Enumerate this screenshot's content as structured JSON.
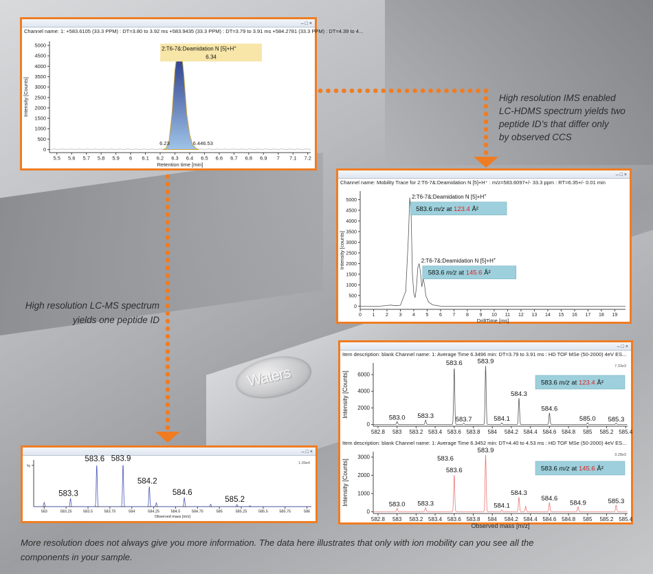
{
  "colors": {
    "accent": "#f07c22",
    "label_box": "#9dd0dc",
    "ccs_red": "#e0201e",
    "peak_fill": "#2a3f8f",
    "annot_bg": "#f7e6a8"
  },
  "background": {
    "logo_text": "Waters"
  },
  "captions": {
    "ims": [
      "High resolution IMS enabled",
      "LC-HDMS spectrum yields two",
      "peptide ID’s that differ only",
      "by observed CCS"
    ],
    "lcms": [
      "High resolution LC-MS spectrum",
      "yields one peptide ID"
    ],
    "footer": [
      "More resolution does not always give you more information. The data here illustrates that only with ion mobility can you see all the",
      "components in your sample."
    ]
  },
  "chart_data": [
    {
      "id": "chromatogram",
      "type": "line",
      "channel_text": "Channel name: 1: +583.6105 (33.3 PPM) : DT=3.80 to 3.92 ms +583.9435 (33.3 PPM) : DT=3.79 to 3.91 ms +584.2781 (33.3 PPM) : DT=4.39 to 4...",
      "xlabel": "Retention time [min]",
      "ylabel": "Intensity [Counts]",
      "xlim": [
        5.45,
        7.22
      ],
      "ylim": [
        -150,
        5200
      ],
      "xticks": [
        5.5,
        5.6,
        5.7,
        5.8,
        5.9,
        6,
        6.1,
        6.2,
        6.3,
        6.4,
        6.5,
        6.6,
        6.7,
        6.8,
        6.9,
        7,
        7.1,
        7.2
      ],
      "yticks": [
        0,
        500,
        1000,
        1500,
        2000,
        2500,
        3000,
        3500,
        4000,
        4500,
        5000
      ],
      "peak": {
        "x": [
          6.22,
          6.24,
          6.26,
          6.28,
          6.3,
          6.32,
          6.34,
          6.36,
          6.38,
          6.4,
          6.42,
          6.44,
          6.46
        ],
        "y": [
          0,
          60,
          400,
          1700,
          3800,
          4900,
          5020,
          3600,
          1700,
          700,
          230,
          70,
          0
        ]
      },
      "annotation": {
        "label": "2:T6-7&:Deamidation N [5]+H",
        "sup": "+",
        "value": "6.34"
      },
      "peak_labels": [
        {
          "x": 6.23,
          "y": 80,
          "text": "6.23"
        },
        {
          "x": 6.49,
          "y": 80,
          "text": "6.446.53"
        }
      ]
    },
    {
      "id": "mobility",
      "type": "line",
      "channel_text": "Channel name: Mobility Trace for 2:T6-7&:Deamidation N [5]+H⁺ : m/z=583.6097+/- 33.3 ppm : RT=6.35+/- 0.01 min",
      "xlabel": "DriftTime [ms]",
      "ylabel": "Intensity [counts]",
      "xlim": [
        0,
        19.8
      ],
      "ylim": [
        -150,
        5400
      ],
      "xticks": [
        0,
        1,
        2,
        3,
        4,
        5,
        6,
        7,
        8,
        9,
        10,
        11,
        12,
        13,
        14,
        15,
        16,
        17,
        18,
        19
      ],
      "yticks": [
        0,
        500,
        1000,
        1500,
        2000,
        2500,
        3000,
        3500,
        4000,
        4500,
        5000
      ],
      "trace": {
        "x": [
          0,
          1.5,
          2.0,
          2.3,
          2.6,
          3.0,
          3.4,
          3.6,
          3.7,
          3.8,
          3.9,
          4.0,
          4.1,
          4.2,
          4.3,
          4.4,
          4.5,
          4.6,
          4.7,
          4.8,
          4.9,
          5.1,
          5.4,
          6,
          8,
          12,
          19.8
        ],
        "y": [
          0,
          0,
          30,
          50,
          20,
          40,
          700,
          3300,
          5100,
          4300,
          1500,
          600,
          400,
          900,
          1800,
          2000,
          1600,
          900,
          1300,
          1000,
          500,
          200,
          60,
          0,
          0,
          0,
          0
        ]
      },
      "labels": [
        {
          "x": 3.75,
          "y": 5050,
          "text": "2:T6-7&:Deamidation N [5]+H",
          "sup": "+",
          "mz": "583.6",
          "unit": "m/z",
          "at": " at ",
          "ccs": "123.4",
          "ang": "Å²"
        },
        {
          "x": 4.45,
          "y": 2050,
          "text": "2:T6-7&:Deamidation N [5]+H",
          "sup": "+",
          "mz": "583.6",
          "unit": "m/z",
          "at": " at ",
          "ccs": "145.6",
          "ang": "Å²"
        }
      ]
    },
    {
      "id": "lcms_spectrum",
      "type": "line",
      "xlabel": "Observed mass [m/z]",
      "corner": "1.09e4",
      "xlim": [
        582.88,
        586.05
      ],
      "ylim": [
        0,
        11000
      ],
      "xticks": [
        583,
        583.25,
        583.5,
        583.75,
        584,
        584.25,
        584.5,
        584.75,
        585,
        585.25,
        585.5,
        585.75,
        586
      ],
      "yticks": [
        {
          "v": 9700,
          "text": "%"
        }
      ],
      "peaks": [
        {
          "x": 583.0,
          "h": 1000
        },
        {
          "x": 583.3,
          "h": 1900
        },
        {
          "x": 583.6,
          "h": 10000
        },
        {
          "x": 583.9,
          "h": 10100
        },
        {
          "x": 584.2,
          "h": 4800
        },
        {
          "x": 584.28,
          "h": 900
        },
        {
          "x": 584.6,
          "h": 2100
        },
        {
          "x": 584.9,
          "h": 600
        },
        {
          "x": 585.2,
          "h": 500
        },
        {
          "x": 585.35,
          "h": 200
        }
      ],
      "labels": [
        {
          "x": 583.3,
          "h": 1900,
          "text": "583.3"
        },
        {
          "x": 583.6,
          "h": 10000,
          "text": "583.6"
        },
        {
          "x": 583.9,
          "h": 10100,
          "text": "583.9"
        },
        {
          "x": 584.2,
          "h": 4800,
          "text": "584.2"
        },
        {
          "x": 584.6,
          "h": 2100,
          "text": "584.6"
        },
        {
          "x": 585.2,
          "h": 500,
          "text": "585.2"
        }
      ]
    },
    {
      "id": "hdms_spectrum_1",
      "type": "line",
      "desc": "Item description: blank Channel name: 1: Average Time 6.3496 min: DT=3.79 to 3.91 ms : HD TOF MSe (50-2000) 4eV ES...",
      "ylabel": "Intensity [Counts]",
      "corner": "7.33e3",
      "xlim": [
        582.75,
        585.42
      ],
      "ylim": [
        -200,
        7400
      ],
      "xticks": [
        582.8,
        583,
        583.2,
        583.4,
        583.6,
        583.8,
        584,
        584.2,
        584.4,
        584.6,
        584.8,
        585,
        585.2,
        585.4
      ],
      "yticks": [
        0,
        2000,
        4000,
        6000
      ],
      "peaks": [
        {
          "x": 583.0,
          "h": 350
        },
        {
          "x": 583.3,
          "h": 550
        },
        {
          "x": 583.6,
          "h": 6900
        },
        {
          "x": 583.7,
          "h": 150
        },
        {
          "x": 583.93,
          "h": 7100
        },
        {
          "x": 584.1,
          "h": 200
        },
        {
          "x": 584.28,
          "h": 3200
        },
        {
          "x": 584.6,
          "h": 1400
        },
        {
          "x": 585.0,
          "h": 220
        },
        {
          "x": 585.3,
          "h": 150
        }
      ],
      "labels": [
        {
          "x": 583.0,
          "h": 350,
          "text": "583.0"
        },
        {
          "x": 583.3,
          "h": 550,
          "text": "583.3"
        },
        {
          "x": 583.6,
          "h": 6900,
          "text": "583.6"
        },
        {
          "x": 583.7,
          "h": 150,
          "text": "583.7"
        },
        {
          "x": 583.93,
          "h": 7100,
          "text": "583.9"
        },
        {
          "x": 584.1,
          "h": 200,
          "text": "584.1"
        },
        {
          "x": 584.28,
          "h": 3200,
          "text": "584.3"
        },
        {
          "x": 584.6,
          "h": 1400,
          "text": "584.6"
        },
        {
          "x": 585.0,
          "h": 220,
          "text": "585.0"
        },
        {
          "x": 585.3,
          "h": 150,
          "text": "585.3"
        }
      ],
      "box": {
        "mz": "583.6",
        "unit": "m/z",
        "at": " at ",
        "ccs": "123.4",
        "ang": "Å²"
      }
    },
    {
      "id": "hdms_spectrum_2",
      "type": "line",
      "desc": "Item description: blank Channel name: 1: Average Time 6.3452 min: DT=4.40 to 4.53 ms : HD TOF MSe (50-2000) 4eV ES...",
      "xlabel": "Observed mass [m/z]",
      "ylabel": "Intensity [Counts]",
      "corner": "3.28e3",
      "xlim": [
        582.75,
        585.42
      ],
      "ylim": [
        -100,
        3300
      ],
      "xticks": [
        582.8,
        583,
        583.2,
        583.4,
        583.6,
        583.8,
        584,
        584.2,
        584.4,
        584.6,
        584.8,
        585,
        585.2,
        585.4
      ],
      "yticks": [
        0,
        1000,
        2000,
        3000
      ],
      "peaks": [
        {
          "x": 583.0,
          "h": 180
        },
        {
          "x": 583.3,
          "h": 220
        },
        {
          "x": 583.6,
          "h": 2050
        },
        {
          "x": 583.93,
          "h": 3150
        },
        {
          "x": 584.1,
          "h": 100
        },
        {
          "x": 584.28,
          "h": 800
        },
        {
          "x": 584.35,
          "h": 300
        },
        {
          "x": 584.6,
          "h": 500
        },
        {
          "x": 584.9,
          "h": 260
        },
        {
          "x": 585.3,
          "h": 360
        }
      ],
      "labels": [
        {
          "x": 583.0,
          "h": 180,
          "text": "583.0"
        },
        {
          "x": 583.3,
          "h": 220,
          "text": "583.3"
        },
        {
          "x": 583.6,
          "h": 2050,
          "text": "583.6"
        },
        {
          "x": 583.58,
          "h": 2700,
          "text": "583.6"
        },
        {
          "x": 583.93,
          "h": 3150,
          "text": "583.9"
        },
        {
          "x": 584.1,
          "h": 100,
          "text": "584.1"
        },
        {
          "x": 584.28,
          "h": 800,
          "text": "584.3"
        },
        {
          "x": 584.6,
          "h": 500,
          "text": "584.6"
        },
        {
          "x": 584.9,
          "h": 260,
          "text": "584.9"
        },
        {
          "x": 585.3,
          "h": 360,
          "text": "585.3"
        }
      ],
      "box": {
        "mz": "583.6",
        "unit": "m/z",
        "at": " at ",
        "ccs": "145.6",
        "ang": "Å²"
      }
    }
  ]
}
